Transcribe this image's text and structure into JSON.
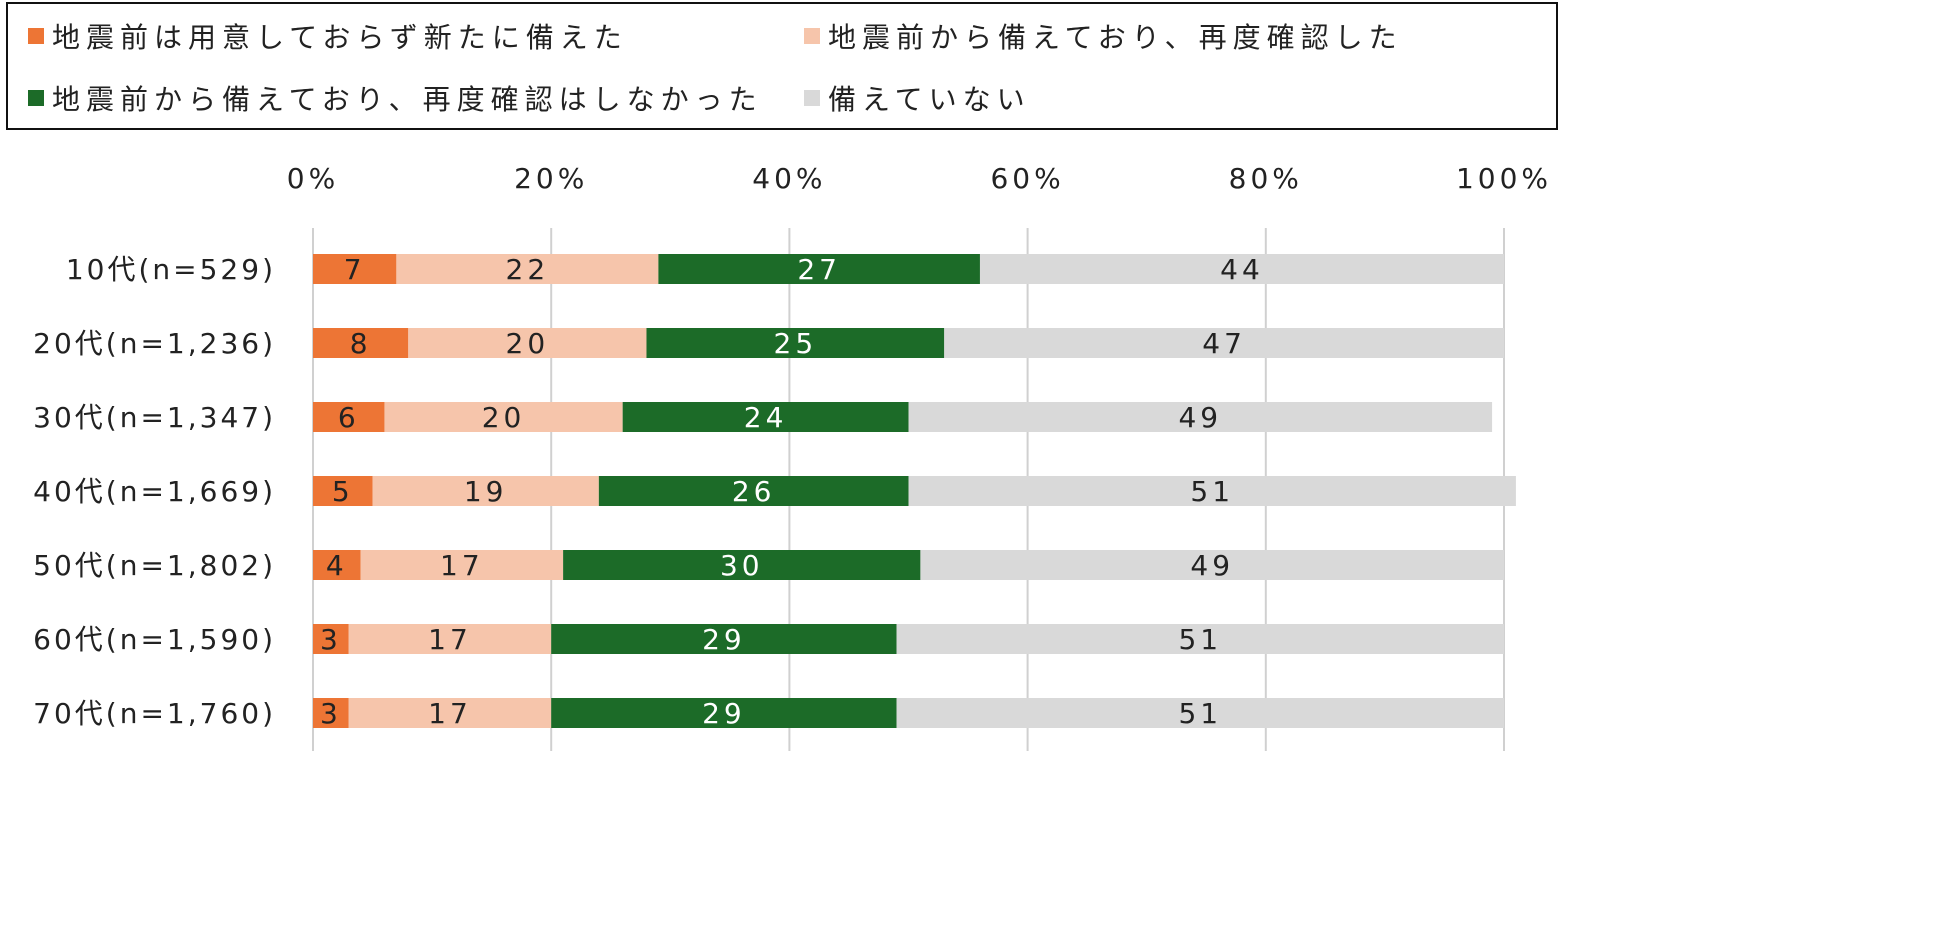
{
  "chart_data": {
    "type": "bar",
    "stacked": true,
    "orientation": "horizontal",
    "categories": [
      "10代(n=529)",
      "20代(n=1,236)",
      "30代(n=1,347)",
      "40代(n=1,669)",
      "50代(n=1,802)",
      "60代(n=1,590)",
      "70代(n=1,760)"
    ],
    "series": [
      {
        "name": "地震前は用意しておらず新たに備えた",
        "color": "#ed7535",
        "label_color": "#222222",
        "values": [
          7,
          8,
          6,
          5,
          4,
          3,
          3
        ]
      },
      {
        "name": "地震前から備えており、再度確認した",
        "color": "#f6c5ab",
        "label_color": "#222222",
        "values": [
          22,
          20,
          20,
          19,
          17,
          17,
          17
        ]
      },
      {
        "name": "地震前から備えており、再度確認はしなかった",
        "color": "#1c6b28",
        "label_color": "#ffffff",
        "values": [
          27,
          25,
          24,
          26,
          30,
          29,
          29
        ]
      },
      {
        "name": "備えていない",
        "color": "#d9d9d9",
        "label_color": "#222222",
        "values": [
          44,
          47,
          49,
          51,
          49,
          51,
          51
        ]
      }
    ],
    "xlim": [
      0,
      100
    ],
    "x_ticks": [
      "0%",
      "20%",
      "40%",
      "60%",
      "80%",
      "100%"
    ],
    "grid": "vertical",
    "legend_position": "top",
    "title": "",
    "xlabel": "",
    "ylabel": ""
  }
}
